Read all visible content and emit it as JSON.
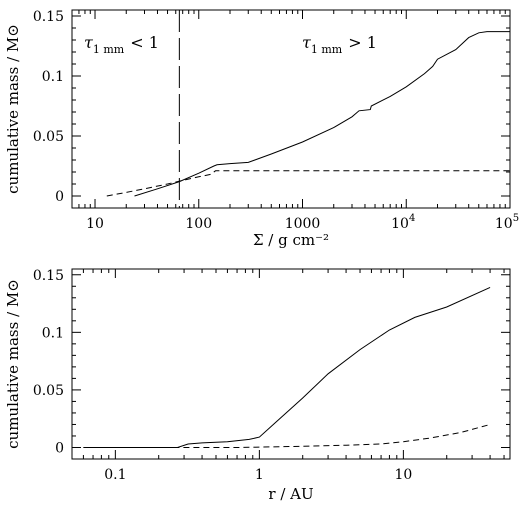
{
  "chart_data": [
    {
      "type": "line",
      "xscale": "log",
      "xlim": [
        6,
        100000
      ],
      "ylim": [
        -0.01,
        0.155
      ],
      "xlabel": "Σ / g cm⁻²",
      "ylabel": "cumulative mass / M⊙",
      "xticks": [
        {
          "value": 10,
          "label": "10"
        },
        {
          "value": 100,
          "label": "100"
        },
        {
          "value": 1000,
          "label": "1000"
        },
        {
          "value": 10000,
          "label": "10",
          "sup": "4"
        },
        {
          "value": 100000,
          "label": "10",
          "sup": "5"
        }
      ],
      "yticks": [
        {
          "value": 0,
          "label": "0"
        },
        {
          "value": 0.05,
          "label": "0.05"
        },
        {
          "value": 0.1,
          "label": "0.1"
        },
        {
          "value": 0.15,
          "label": "0.15"
        }
      ],
      "vline": {
        "x": 65,
        "style": "long-dash"
      },
      "annotations": [
        {
          "text_main": "τ",
          "sub": "1 mm",
          "rel": "< 1",
          "region": "left of vline"
        },
        {
          "text_main": "τ",
          "sub": "1 mm",
          "rel": "> 1",
          "region": "right of vline"
        }
      ],
      "series": [
        {
          "style": "solid",
          "x": [
            24,
            40,
            65,
            100,
            140,
            150,
            200,
            300,
            500,
            1000,
            2000,
            3000,
            3500,
            4500,
            4600,
            7000,
            10000,
            15000,
            18000,
            20000,
            30000,
            40000,
            50000,
            60000,
            100000
          ],
          "y": [
            0,
            0.006,
            0.012,
            0.019,
            0.025,
            0.026,
            0.027,
            0.028,
            0.035,
            0.045,
            0.057,
            0.066,
            0.071,
            0.072,
            0.075,
            0.083,
            0.091,
            0.102,
            0.108,
            0.114,
            0.122,
            0.132,
            0.136,
            0.137,
            0.137
          ]
        },
        {
          "style": "dashed",
          "x": [
            13,
            20,
            30,
            50,
            70,
            100,
            130,
            145,
            150,
            100000
          ],
          "y": [
            0,
            0.003,
            0.006,
            0.01,
            0.013,
            0.016,
            0.018,
            0.021,
            0.021,
            0.021
          ]
        }
      ]
    },
    {
      "type": "line",
      "xscale": "log",
      "xlim": [
        0.05,
        55
      ],
      "ylim": [
        -0.01,
        0.155
      ],
      "xlabel": "r / AU",
      "ylabel": "cumulative mass / M⊙",
      "xticks": [
        {
          "value": 0.1,
          "label": "0.1"
        },
        {
          "value": 1,
          "label": "1"
        },
        {
          "value": 10,
          "label": "10"
        }
      ],
      "yticks": [
        {
          "value": 0,
          "label": "0"
        },
        {
          "value": 0.05,
          "label": "0.05"
        },
        {
          "value": 0.1,
          "label": "0.1"
        },
        {
          "value": 0.15,
          "label": "0.15"
        }
      ],
      "series": [
        {
          "style": "solid",
          "x": [
            0.06,
            0.27,
            0.32,
            0.4,
            0.6,
            0.85,
            1.0,
            1.3,
            2,
            3,
            5,
            8,
            12,
            20,
            40
          ],
          "y": [
            0,
            0,
            0.003,
            0.004,
            0.005,
            0.007,
            0.009,
            0.022,
            0.043,
            0.064,
            0.085,
            0.102,
            0.113,
            0.122,
            0.139
          ]
        },
        {
          "style": "dashed",
          "x": [
            0.06,
            0.7,
            1,
            2,
            4,
            7,
            10,
            15,
            25,
            40
          ],
          "y": [
            0,
            0,
            0.0003,
            0.001,
            0.002,
            0.003,
            0.005,
            0.008,
            0.013,
            0.02
          ]
        }
      ]
    }
  ]
}
